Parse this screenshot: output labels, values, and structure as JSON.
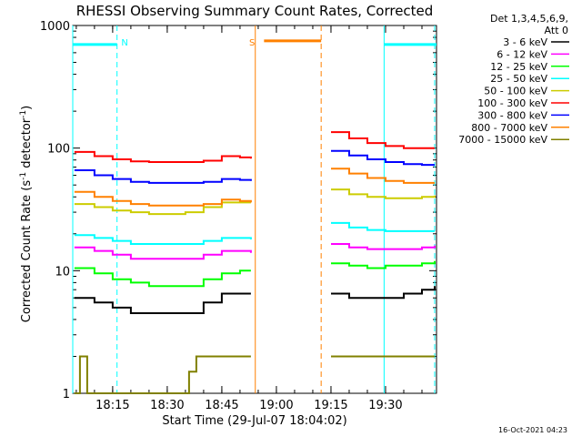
{
  "chart_data": {
    "type": "line",
    "title": "RHESSI Observing Summary Count Rates, Corrected",
    "xlabel": "Start Time (29-Jul-07 18:04:02)",
    "ylabel_main": "Corrected Count Rate (s",
    "ylabel_sup1": "-1",
    "ylabel_mid": " detector",
    "ylabel_sup2": "-1",
    "ylabel_end": ")",
    "y_scale": "log",
    "ylim": [
      1,
      1000
    ],
    "xlim_min": [
      4.03,
      104
    ],
    "y_ticks": [
      {
        "v": 1000,
        "label": "1000"
      },
      {
        "v": 100,
        "label": "100"
      },
      {
        "v": 10,
        "label": "10"
      },
      {
        "v": 1,
        "label": "1"
      }
    ],
    "x_ticks": [
      {
        "v": 15,
        "label": "18:15"
      },
      {
        "v": 30,
        "label": "18:30"
      },
      {
        "v": 45,
        "label": "18:45"
      },
      {
        "v": 60,
        "label": "19:00"
      },
      {
        "v": 75,
        "label": "19:15"
      },
      {
        "v": 90,
        "label": "19:30"
      }
    ],
    "legend_header": [
      "Det 1,3,4,5,6,9,",
      "Att 0"
    ],
    "legend_position": "right",
    "gaps_min": [
      [
        53.5,
        74.5
      ]
    ],
    "series": [
      {
        "name": "3 - 6 keV",
        "color": "#000000",
        "x": [
          4.5,
          10,
          15,
          20,
          25,
          30,
          35,
          40,
          45,
          50,
          53,
          75,
          80,
          85,
          90,
          95,
          100,
          103.5
        ],
        "y": [
          6,
          5.5,
          5,
          4.5,
          4.5,
          4.5,
          4.5,
          5.5,
          6.5,
          6.5,
          6.5,
          6.5,
          6,
          6,
          6,
          6.5,
          7,
          7.5
        ]
      },
      {
        "name": "6 - 12 keV",
        "color": "#ff00ff",
        "x": [
          4.5,
          10,
          15,
          20,
          25,
          30,
          35,
          40,
          45,
          50,
          53,
          75,
          80,
          85,
          90,
          95,
          100,
          103.5
        ],
        "y": [
          15.5,
          14.5,
          13.5,
          12.5,
          12.5,
          12.5,
          12.5,
          13.5,
          14.5,
          14.5,
          14,
          16.5,
          15.5,
          15,
          15,
          15,
          15.5,
          16
        ]
      },
      {
        "name": "12 - 25 keV",
        "color": "#00ff00",
        "x": [
          4.5,
          10,
          15,
          20,
          25,
          30,
          35,
          40,
          45,
          50,
          53,
          75,
          80,
          85,
          90,
          95,
          100,
          103.5
        ],
        "y": [
          10.5,
          9.5,
          8.5,
          8,
          7.5,
          7.5,
          7.5,
          8.5,
          9.5,
          10,
          10,
          11.5,
          11,
          10.5,
          11,
          11,
          11.5,
          12
        ]
      },
      {
        "name": "25 - 50 keV",
        "color": "#00ffff",
        "x": [
          4.5,
          10,
          15,
          20,
          25,
          30,
          35,
          40,
          45,
          50,
          53,
          75,
          80,
          85,
          90,
          95,
          100,
          103.5
        ],
        "y": [
          19.5,
          18.5,
          17.5,
          16.5,
          16.5,
          16.5,
          16.5,
          17.5,
          18.5,
          18.5,
          18,
          24.5,
          22.5,
          21.5,
          21,
          21,
          21,
          21
        ]
      },
      {
        "name": "50 - 100 keV",
        "color": "#cccc00",
        "x": [
          4.5,
          10,
          15,
          20,
          25,
          30,
          35,
          40,
          45,
          50,
          53,
          75,
          80,
          85,
          90,
          95,
          100,
          103.5
        ],
        "y": [
          35,
          33,
          31,
          30,
          29,
          29,
          30,
          33,
          36,
          36,
          36,
          46,
          42,
          40,
          39,
          39,
          40,
          41
        ]
      },
      {
        "name": "100 - 300 keV",
        "color": "#ff0000",
        "x": [
          4.5,
          10,
          15,
          20,
          25,
          30,
          35,
          40,
          45,
          50,
          53,
          75,
          80,
          85,
          90,
          95,
          100,
          103.5
        ],
        "y": [
          93,
          86,
          81,
          78,
          77,
          77,
          77,
          79,
          86,
          84,
          82,
          135,
          120,
          110,
          104,
          100,
          100,
          100
        ]
      },
      {
        "name": "300 - 800 keV",
        "color": "#0000ff",
        "x": [
          4.5,
          10,
          15,
          20,
          25,
          30,
          35,
          40,
          45,
          50,
          53,
          75,
          80,
          85,
          90,
          95,
          100,
          103.5
        ],
        "y": [
          66,
          60,
          56,
          53,
          52,
          52,
          52,
          53,
          56,
          55,
          54,
          95,
          87,
          81,
          77,
          74,
          73,
          73
        ]
      },
      {
        "name": "800 - 7000 keV",
        "color": "#ff8000",
        "x": [
          4.5,
          10,
          15,
          20,
          25,
          30,
          35,
          40,
          45,
          50,
          53,
          75,
          80,
          85,
          90,
          95,
          100,
          103.5
        ],
        "y": [
          44,
          40,
          37,
          35,
          34,
          34,
          34,
          35,
          38,
          37,
          36,
          68,
          62,
          57,
          54,
          52,
          52,
          52
        ]
      },
      {
        "name": "7000 - 15000 keV",
        "color": "#808000",
        "x": [
          4.5,
          6,
          8,
          10,
          12,
          14,
          16,
          18,
          20,
          22,
          24,
          26,
          28,
          30,
          32,
          34,
          36,
          38,
          40,
          42,
          44,
          46,
          48,
          50,
          52,
          53,
          75,
          78,
          81,
          84,
          87,
          90,
          93,
          96,
          99,
          102,
          103.5
        ],
        "y": [
          1,
          2,
          1,
          1,
          1,
          1,
          1,
          1,
          1,
          1,
          1,
          1,
          1,
          1,
          1,
          1,
          1.5,
          2,
          2,
          2,
          2,
          2,
          2,
          2,
          2,
          2,
          2,
          2,
          2,
          2,
          2,
          2,
          2,
          2,
          2,
          2,
          2
        ]
      }
    ],
    "attenuator_segments": [
      {
        "x0": 4.03,
        "x1": 16.2,
        "y": 700,
        "color": "#00ffff"
      },
      {
        "x0": 56.6,
        "x1": 72.3,
        "y": 750,
        "color": "#ff8000"
      },
      {
        "x0": 89.6,
        "x1": 104,
        "y": 700,
        "color": "#00ffff"
      }
    ],
    "vertical_lines": [
      {
        "x": 4.03,
        "color": "#00ffff",
        "style": "solid"
      },
      {
        "x": 16.2,
        "color": "#00ffff",
        "style": "dashed"
      },
      {
        "x": 54.2,
        "color": "#ff8000",
        "style": "solid"
      },
      {
        "x": 72.3,
        "color": "#ff8000",
        "style": "dashed"
      },
      {
        "x": 89.6,
        "color": "#00ffff",
        "style": "solid"
      },
      {
        "x": 103.5,
        "color": "#00ffff",
        "style": "dashed"
      }
    ],
    "flags": [
      {
        "x": 18.3,
        "text": "N",
        "color": "#00ffff"
      },
      {
        "x": 53.3,
        "text": "S",
        "color": "#ff8000"
      }
    ],
    "footer_timestamp": "16-Oct-2021 04:23"
  }
}
